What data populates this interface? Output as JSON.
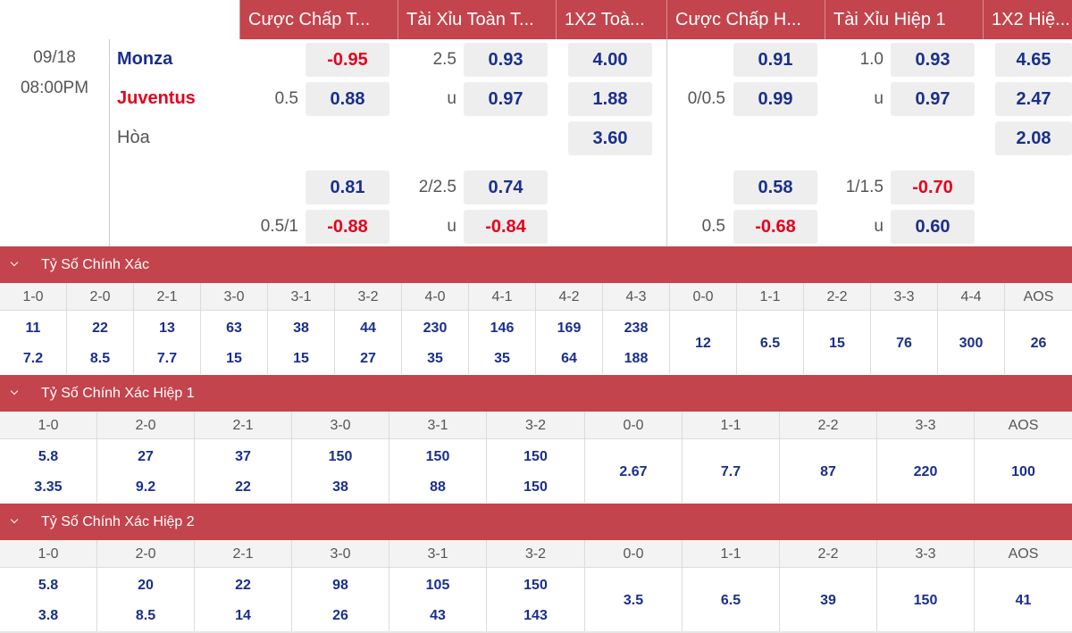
{
  "header": {
    "tabs": [
      "Cược Chấp T...",
      "Tài Xỉu Toàn T...",
      "1X2 Toà...",
      "Cược Chấp H...",
      "Tài Xỉu Hiệp 1",
      "1X2 Hiệ..."
    ]
  },
  "match": {
    "date": "09/18",
    "time": "08:00PM",
    "home": "Monza",
    "away": "Juventus",
    "draw": "Hòa",
    "ft_handicap": {
      "line": "0.5",
      "home": "-0.95",
      "away": "0.88",
      "alt_line": "0.5/1",
      "alt_home": "0.81",
      "alt_away": "-0.88"
    },
    "ft_ou": {
      "line": "2.5",
      "under_label": "u",
      "over": "0.93",
      "under": "0.97",
      "alt_line": "2/2.5",
      "alt_over": "0.74",
      "alt_under": "-0.84"
    },
    "ft_1x2": {
      "home": "4.00",
      "away": "1.88",
      "draw": "3.60"
    },
    "h1_handicap": {
      "line": "0/0.5",
      "home": "0.91",
      "away": "0.99",
      "alt_line": "0.5",
      "alt_home": "0.58",
      "alt_away": "-0.68"
    },
    "h1_ou": {
      "line": "1.0",
      "under_label": "u",
      "over": "0.93",
      "under": "0.97",
      "alt_line": "1/1.5",
      "alt_over": "-0.70",
      "alt_under": "0.60"
    },
    "h1_1x2": {
      "home": "4.65",
      "away": "2.47",
      "draw": "2.08"
    }
  },
  "sections": [
    {
      "title": "Tỷ Số Chính Xác",
      "columns": [
        {
          "label": "1-0",
          "top": "11",
          "bottom": "7.2"
        },
        {
          "label": "2-0",
          "top": "22",
          "bottom": "8.5"
        },
        {
          "label": "2-1",
          "top": "13",
          "bottom": "7.7"
        },
        {
          "label": "3-0",
          "top": "63",
          "bottom": "15"
        },
        {
          "label": "3-1",
          "top": "38",
          "bottom": "15"
        },
        {
          "label": "3-2",
          "top": "44",
          "bottom": "27"
        },
        {
          "label": "4-0",
          "top": "230",
          "bottom": "35"
        },
        {
          "label": "4-1",
          "top": "146",
          "bottom": "35"
        },
        {
          "label": "4-2",
          "top": "169",
          "bottom": "64"
        },
        {
          "label": "4-3",
          "top": "238",
          "bottom": "188"
        },
        {
          "label": "0-0",
          "single": "12"
        },
        {
          "label": "1-1",
          "single": "6.5"
        },
        {
          "label": "2-2",
          "single": "15"
        },
        {
          "label": "3-3",
          "single": "76"
        },
        {
          "label": "4-4",
          "single": "300"
        },
        {
          "label": "AOS",
          "single": "26"
        }
      ]
    },
    {
      "title": "Tỷ Số Chính Xác Hiệp 1",
      "columns": [
        {
          "label": "1-0",
          "top": "5.8",
          "bottom": "3.35"
        },
        {
          "label": "2-0",
          "top": "27",
          "bottom": "9.2"
        },
        {
          "label": "2-1",
          "top": "37",
          "bottom": "22"
        },
        {
          "label": "3-0",
          "top": "150",
          "bottom": "38"
        },
        {
          "label": "3-1",
          "top": "150",
          "bottom": "88"
        },
        {
          "label": "3-2",
          "top": "150",
          "bottom": "150"
        },
        {
          "label": "0-0",
          "single": "2.67"
        },
        {
          "label": "1-1",
          "single": "7.7"
        },
        {
          "label": "2-2",
          "single": "87"
        },
        {
          "label": "3-3",
          "single": "220"
        },
        {
          "label": "AOS",
          "single": "100"
        }
      ]
    },
    {
      "title": "Tỷ Số Chính Xác Hiệp 2",
      "columns": [
        {
          "label": "1-0",
          "top": "5.8",
          "bottom": "3.8"
        },
        {
          "label": "2-0",
          "top": "20",
          "bottom": "8.5"
        },
        {
          "label": "2-1",
          "top": "22",
          "bottom": "14"
        },
        {
          "label": "3-0",
          "top": "98",
          "bottom": "26"
        },
        {
          "label": "3-1",
          "top": "105",
          "bottom": "43"
        },
        {
          "label": "3-2",
          "top": "150",
          "bottom": "143"
        },
        {
          "label": "0-0",
          "single": "3.5"
        },
        {
          "label": "1-1",
          "single": "6.5"
        },
        {
          "label": "2-2",
          "single": "39"
        },
        {
          "label": "3-3",
          "single": "150"
        },
        {
          "label": "AOS",
          "single": "41"
        }
      ]
    }
  ]
}
